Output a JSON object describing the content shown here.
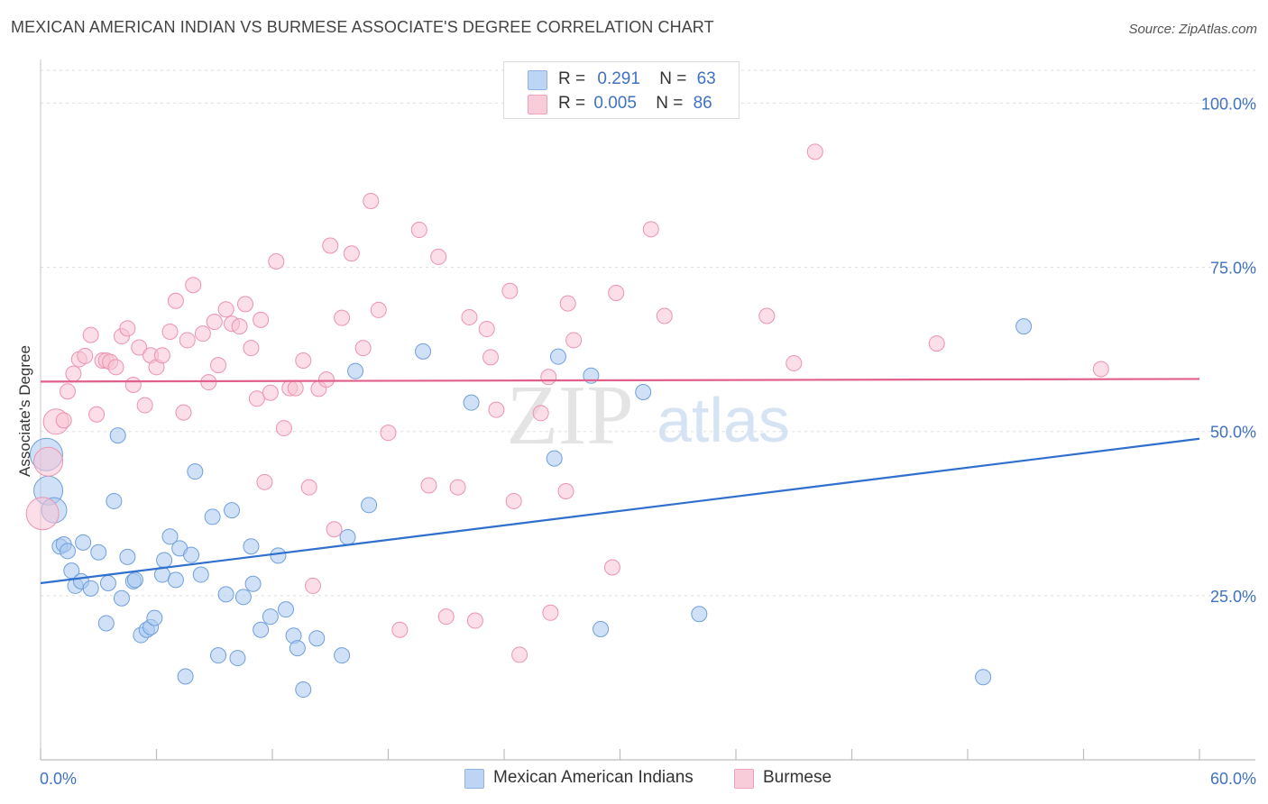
{
  "title": "MEXICAN AMERICAN INDIAN VS BURMESE ASSOCIATE'S DEGREE CORRELATION CHART",
  "source": "Source: ZipAtlas.com",
  "watermark": {
    "zip": "ZIP",
    "atlas": "atlas"
  },
  "legend": {
    "rows": [
      {
        "r_label": "R =",
        "r_value": "0.291",
        "n_label": "N =",
        "n_value": "63"
      },
      {
        "r_label": "R =",
        "r_value": "0.005",
        "n_label": "N =",
        "n_value": "86"
      }
    ]
  },
  "chart_data": {
    "type": "scatter",
    "title": "MEXICAN AMERICAN INDIAN VS BURMESE ASSOCIATE'S DEGREE CORRELATION CHART",
    "xlabel": "",
    "ylabel": "Associate's Degree",
    "xlim": [
      0,
      60
    ],
    "ylim": [
      0,
      105
    ],
    "x_tick_labels": [
      "0.0%",
      "60.0%"
    ],
    "y_ticks": [
      25,
      50,
      75,
      100
    ],
    "y_tick_labels": [
      "25.0%",
      "50.0%",
      "75.0%",
      "100.0%"
    ],
    "grid": true,
    "legend_position": "top-center",
    "series": [
      {
        "name": "Mexican American Indians",
        "color": "#a9c8f0",
        "stroke": "#6f9fdc",
        "line_color": "#2f6fce",
        "r": 0.291,
        "n": 63,
        "trend": {
          "x": [
            0,
            60
          ],
          "y": [
            26.9,
            48.9
          ]
        },
        "points": [
          [
            0.3,
            46.5
          ],
          [
            0.4,
            41
          ],
          [
            0.7,
            38
          ],
          [
            1.0,
            32.5
          ],
          [
            1.2,
            32.8
          ],
          [
            1.4,
            31.8
          ],
          [
            1.6,
            28.8
          ],
          [
            1.8,
            26.5
          ],
          [
            2.1,
            27.2
          ],
          [
            2.2,
            33.1
          ],
          [
            2.6,
            26.1
          ],
          [
            3.0,
            31.6
          ],
          [
            3.4,
            20.8
          ],
          [
            3.5,
            26.9
          ],
          [
            3.8,
            39.4
          ],
          [
            4.0,
            49.4
          ],
          [
            4.2,
            24.6
          ],
          [
            4.5,
            30.9
          ],
          [
            4.8,
            27.2
          ],
          [
            4.9,
            27.4
          ],
          [
            5.2,
            19.0
          ],
          [
            5.5,
            19.8
          ],
          [
            5.7,
            20.2
          ],
          [
            5.9,
            21.6
          ],
          [
            6.3,
            28.2
          ],
          [
            6.4,
            30.4
          ],
          [
            6.7,
            34.0
          ],
          [
            7.0,
            27.4
          ],
          [
            7.2,
            32.2
          ],
          [
            7.5,
            12.7
          ],
          [
            7.8,
            31.2
          ],
          [
            8.0,
            43.9
          ],
          [
            8.3,
            28.2
          ],
          [
            8.9,
            37.0
          ],
          [
            9.2,
            15.9
          ],
          [
            9.6,
            25.2
          ],
          [
            9.9,
            38.0
          ],
          [
            10.2,
            15.5
          ],
          [
            10.5,
            24.8
          ],
          [
            10.9,
            32.5
          ],
          [
            11.0,
            26.8
          ],
          [
            11.4,
            19.8
          ],
          [
            11.9,
            21.8
          ],
          [
            12.3,
            31.1
          ],
          [
            12.7,
            22.9
          ],
          [
            13.1,
            18.9
          ],
          [
            13.3,
            17.0
          ],
          [
            13.6,
            10.7
          ],
          [
            14.3,
            18.5
          ],
          [
            15.6,
            15.9
          ],
          [
            15.9,
            33.9
          ],
          [
            16.3,
            59.2
          ],
          [
            17.0,
            38.8
          ],
          [
            19.8,
            62.2
          ],
          [
            22.3,
            54.4
          ],
          [
            26.6,
            45.9
          ],
          [
            26.8,
            61.4
          ],
          [
            28.5,
            58.5
          ],
          [
            29.0,
            19.9
          ],
          [
            31.2,
            56.0
          ],
          [
            34.1,
            22.2
          ],
          [
            48.8,
            12.6
          ],
          [
            50.9,
            66.0
          ]
        ]
      },
      {
        "name": "Burmese",
        "color": "#f8c3d4",
        "stroke": "#ec93b0",
        "line_color": "#e05f8b",
        "r": 0.005,
        "n": 86,
        "trend": {
          "x": [
            0,
            60
          ],
          "y": [
            57.6,
            58.0
          ]
        },
        "points": [
          [
            0.1,
            37.5
          ],
          [
            0.4,
            45.4
          ],
          [
            0.8,
            51.5
          ],
          [
            1.2,
            51.7
          ],
          [
            1.4,
            56.1
          ],
          [
            1.7,
            58.8
          ],
          [
            2.0,
            61.0
          ],
          [
            2.3,
            61.5
          ],
          [
            2.6,
            64.7
          ],
          [
            2.9,
            52.6
          ],
          [
            3.2,
            60.8
          ],
          [
            3.4,
            60.8
          ],
          [
            3.6,
            60.6
          ],
          [
            3.9,
            59.8
          ],
          [
            4.2,
            64.5
          ],
          [
            4.5,
            65.7
          ],
          [
            4.8,
            57.1
          ],
          [
            5.1,
            62.8
          ],
          [
            5.4,
            54.0
          ],
          [
            5.7,
            61.6
          ],
          [
            6.0,
            59.8
          ],
          [
            6.3,
            61.6
          ],
          [
            6.7,
            65.2
          ],
          [
            7.0,
            69.9
          ],
          [
            7.4,
            52.9
          ],
          [
            7.6,
            63.9
          ],
          [
            7.9,
            72.3
          ],
          [
            8.4,
            64.9
          ],
          [
            8.7,
            57.5
          ],
          [
            9.0,
            66.7
          ],
          [
            9.2,
            60.1
          ],
          [
            9.6,
            68.6
          ],
          [
            9.9,
            66.4
          ],
          [
            10.3,
            66.0
          ],
          [
            10.6,
            69.4
          ],
          [
            10.9,
            62.7
          ],
          [
            11.2,
            55.0
          ],
          [
            11.4,
            67.0
          ],
          [
            11.6,
            42.3
          ],
          [
            11.9,
            55.9
          ],
          [
            12.2,
            75.9
          ],
          [
            12.6,
            50.5
          ],
          [
            12.9,
            56.6
          ],
          [
            13.2,
            56.6
          ],
          [
            13.6,
            60.8
          ],
          [
            13.9,
            41.5
          ],
          [
            14.1,
            26.5
          ],
          [
            14.4,
            56.5
          ],
          [
            14.8,
            57.9
          ],
          [
            15.0,
            78.3
          ],
          [
            15.2,
            35.1
          ],
          [
            15.6,
            67.3
          ],
          [
            16.1,
            77.1
          ],
          [
            16.7,
            62.7
          ],
          [
            17.1,
            85.1
          ],
          [
            17.5,
            68.5
          ],
          [
            18.0,
            49.8
          ],
          [
            18.6,
            19.8
          ],
          [
            19.6,
            80.7
          ],
          [
            20.1,
            41.8
          ],
          [
            20.6,
            76.6
          ],
          [
            21.0,
            21.8
          ],
          [
            21.6,
            41.5
          ],
          [
            22.2,
            67.4
          ],
          [
            22.5,
            21.2
          ],
          [
            23.1,
            65.6
          ],
          [
            23.3,
            61.3
          ],
          [
            23.6,
            53.3
          ],
          [
            24.3,
            71.4
          ],
          [
            24.5,
            39.4
          ],
          [
            24.8,
            16.0
          ],
          [
            25.9,
            52.8
          ],
          [
            26.3,
            58.3
          ],
          [
            26.4,
            22.4
          ],
          [
            27.2,
            40.9
          ],
          [
            27.3,
            69.5
          ],
          [
            27.6,
            63.9
          ],
          [
            29.6,
            29.3
          ],
          [
            29.8,
            71.1
          ],
          [
            31.6,
            80.8
          ],
          [
            32.3,
            67.6
          ],
          [
            37.6,
            67.6
          ],
          [
            39.0,
            60.4
          ],
          [
            40.1,
            92.6
          ],
          [
            46.4,
            63.4
          ],
          [
            54.9,
            59.5
          ]
        ]
      }
    ]
  }
}
